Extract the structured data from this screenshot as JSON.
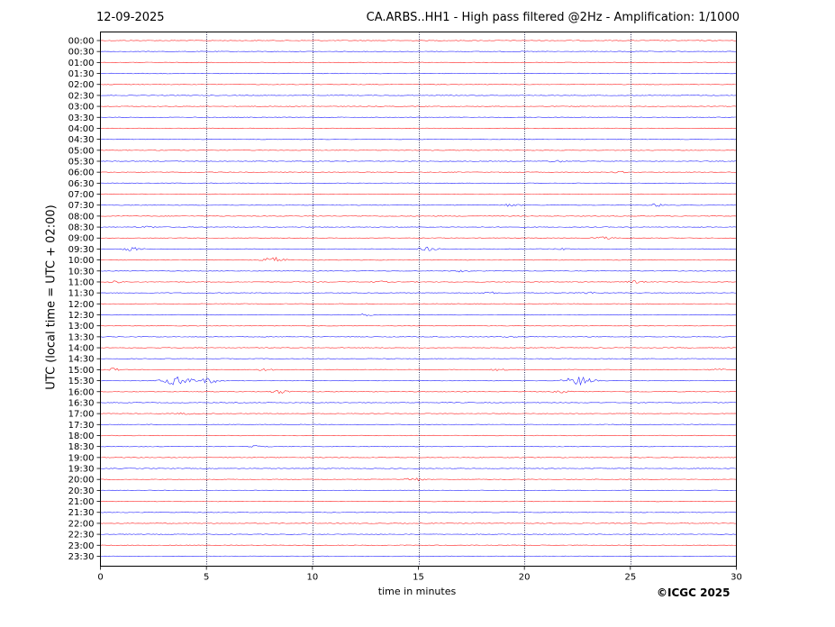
{
  "header": {
    "date": "12-09-2025",
    "title": "CA.ARBS..HH1 - High pass filtered @2Hz - Amplification: 1/1000"
  },
  "footer": {
    "copyright": "©ICGC 2025"
  },
  "chart_data": {
    "type": "line",
    "subtype": "helicorder",
    "title": "CA.ARBS..HH1 - High pass filtered @2Hz - Amplification: 1/1000",
    "date": "12-09-2025",
    "xlabel": "time in minutes",
    "ylabel": "UTC (local time = UTC + 02:00)",
    "xlim": [
      0,
      30
    ],
    "xticks": [
      0,
      5,
      10,
      15,
      20,
      25,
      30
    ],
    "vertical_gridlines": [
      5,
      10,
      15,
      20,
      25
    ],
    "trace_colors": [
      "#ff0000",
      "#0000ff"
    ],
    "rows": [
      "00:00",
      "00:30",
      "01:00",
      "01:30",
      "02:00",
      "02:30",
      "03:00",
      "03:30",
      "04:00",
      "04:30",
      "05:00",
      "05:30",
      "06:00",
      "06:30",
      "07:00",
      "07:30",
      "08:00",
      "08:30",
      "09:00",
      "09:30",
      "10:00",
      "10:30",
      "11:00",
      "11:30",
      "12:00",
      "12:30",
      "13:00",
      "13:30",
      "14:00",
      "14:30",
      "15:00",
      "15:30",
      "16:00",
      "16:30",
      "17:00",
      "17:30",
      "18:00",
      "18:30",
      "19:00",
      "19:30",
      "20:00",
      "20:30",
      "21:00",
      "21:30",
      "22:00",
      "22:30",
      "23:00",
      "23:30"
    ],
    "events": [
      {
        "row": "05:30",
        "minute": 21.5,
        "amplitude": 1.2
      },
      {
        "row": "06:00",
        "minute": 24.5,
        "amplitude": 0.8
      },
      {
        "row": "07:30",
        "minute": 19.3,
        "amplitude": 1.5
      },
      {
        "row": "07:30",
        "minute": 26.3,
        "amplitude": 1.5
      },
      {
        "row": "08:30",
        "minute": 2.2,
        "amplitude": 1.2
      },
      {
        "row": "09:00",
        "minute": 23.7,
        "amplitude": 1.5
      },
      {
        "row": "09:30",
        "minute": 1.5,
        "amplitude": 2.0
      },
      {
        "row": "09:30",
        "minute": 15.5,
        "amplitude": 2.0
      },
      {
        "row": "09:30",
        "minute": 21.8,
        "amplitude": 0.8
      },
      {
        "row": "10:00",
        "minute": 8.2,
        "amplitude": 3.0
      },
      {
        "row": "10:30",
        "minute": 17.0,
        "amplitude": 1.0
      },
      {
        "row": "11:00",
        "minute": 0.7,
        "amplitude": 1.5
      },
      {
        "row": "11:00",
        "minute": 25.2,
        "amplitude": 1.5
      },
      {
        "row": "11:00",
        "minute": 13.2,
        "amplitude": 1.0
      },
      {
        "row": "11:30",
        "minute": 18.5,
        "amplitude": 1.0
      },
      {
        "row": "11:30",
        "minute": 23.0,
        "amplitude": 1.2
      },
      {
        "row": "12:30",
        "minute": 12.5,
        "amplitude": 1.2
      },
      {
        "row": "13:30",
        "minute": 19.2,
        "amplitude": 0.7
      },
      {
        "row": "15:00",
        "minute": 0.6,
        "amplitude": 1.5
      },
      {
        "row": "15:00",
        "minute": 7.8,
        "amplitude": 1.2
      },
      {
        "row": "15:00",
        "minute": 18.8,
        "amplitude": 1.0
      },
      {
        "row": "15:00",
        "minute": 29.0,
        "amplitude": 1.0
      },
      {
        "row": "15:30",
        "minute": 3.6,
        "amplitude": 5.0
      },
      {
        "row": "15:30",
        "minute": 5.1,
        "amplitude": 3.0
      },
      {
        "row": "15:30",
        "minute": 22.6,
        "amplitude": 5.0
      },
      {
        "row": "16:00",
        "minute": 8.5,
        "amplitude": 2.0
      },
      {
        "row": "16:00",
        "minute": 21.8,
        "amplitude": 1.2
      },
      {
        "row": "17:00",
        "minute": 4.0,
        "amplitude": 1.0
      },
      {
        "row": "18:30",
        "minute": 7.5,
        "amplitude": 1.2
      },
      {
        "row": "20:00",
        "minute": 14.8,
        "amplitude": 2.0
      }
    ]
  }
}
